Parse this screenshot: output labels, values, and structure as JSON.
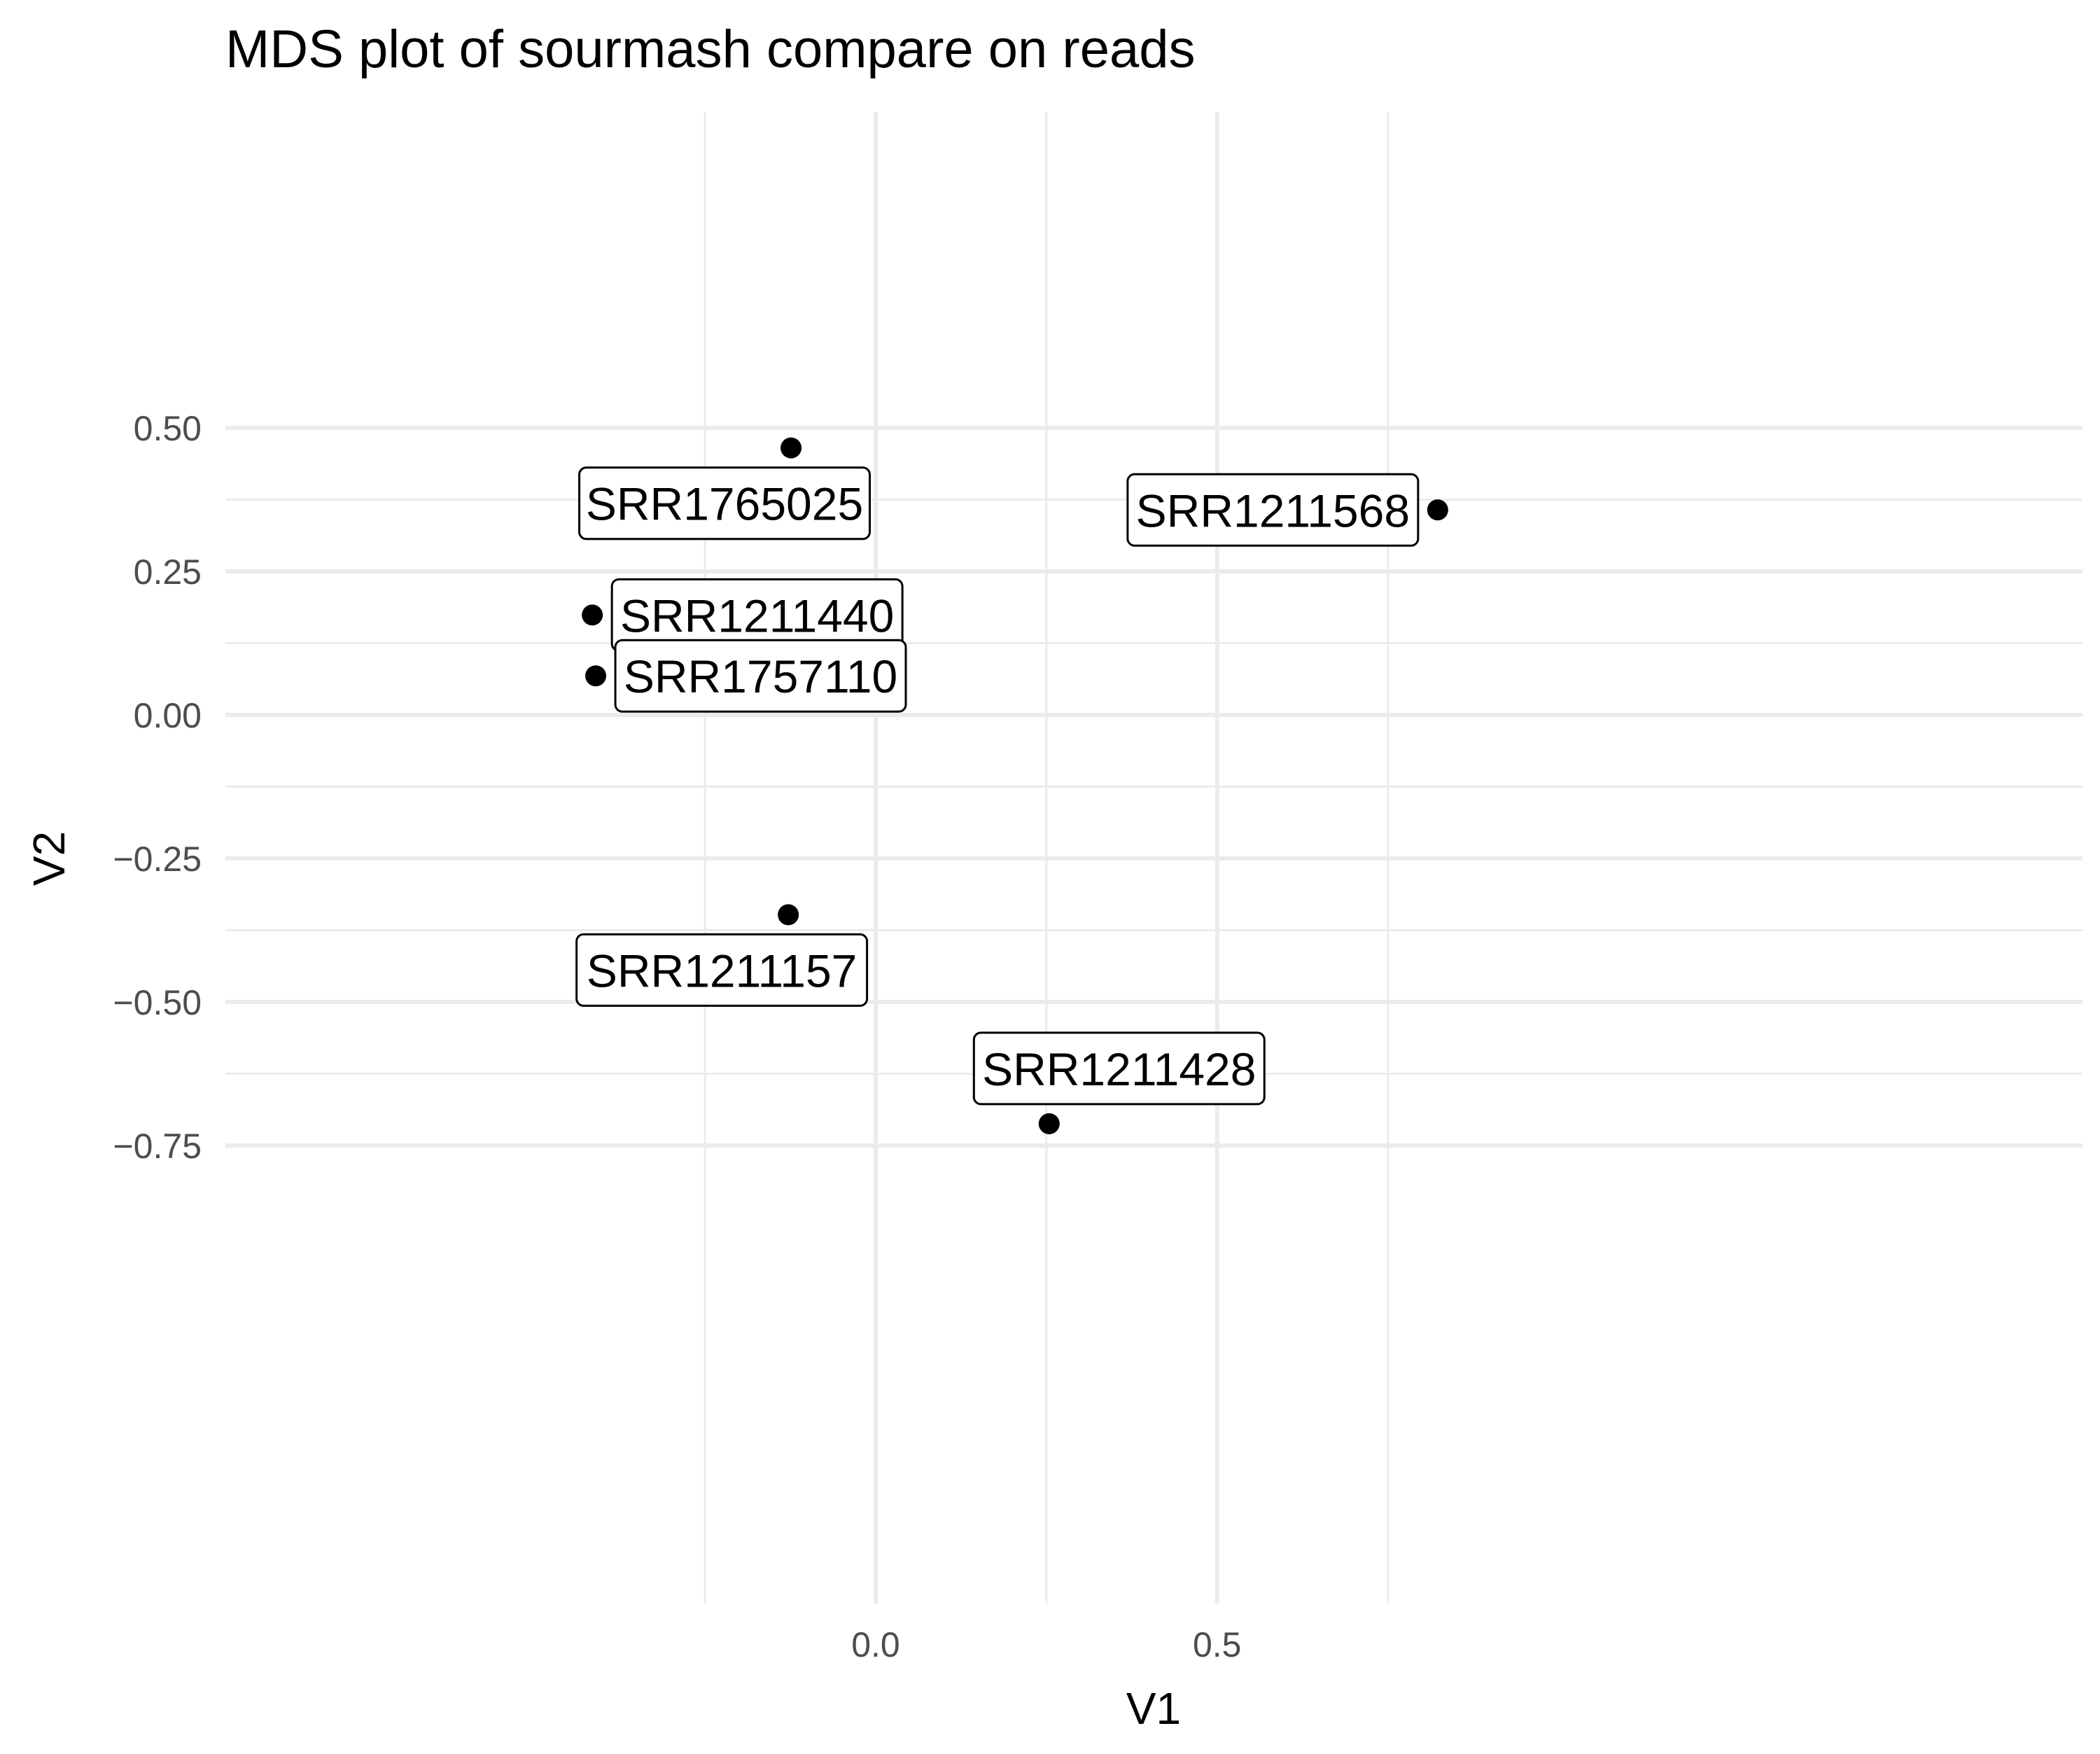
{
  "chart_data": {
    "type": "scatter",
    "title": "MDS plot of sourmash compare on reads",
    "xlabel": "V1",
    "ylabel": "V2",
    "xlim": [
      -0.485,
      0.875
    ],
    "ylim": [
      -0.77,
      0.515
    ],
    "x_ticks": [
      0.0,
      0.5
    ],
    "x_tick_labels": [
      "0.0",
      "0.5"
    ],
    "x_minor_ticks": [
      -0.25,
      0.25,
      0.75
    ],
    "y_ticks": [
      0.5,
      0.25,
      0.0,
      -0.25,
      -0.5,
      -0.75
    ],
    "y_tick_labels": [
      "0.50",
      "0.25",
      "0.00",
      "−0.25",
      "−0.50",
      "−0.75"
    ],
    "y_minor_ticks": [
      0.375,
      0.125,
      -0.125,
      -0.375,
      -0.625
    ],
    "grid": true,
    "legend": "none",
    "point_color": "#000000",
    "grid_color": "#ebebeb",
    "points": [
      {
        "label": "SRR1765025",
        "x": -0.124,
        "y": 0.465,
        "label_side": "below"
      },
      {
        "label": "SRR1211568",
        "x": 0.823,
        "y": 0.357,
        "label_side": "left"
      },
      {
        "label": "SRR1211440",
        "x": -0.415,
        "y": 0.174,
        "label_side": "right"
      },
      {
        "label": "SRR1757110",
        "x": -0.41,
        "y": 0.068,
        "label_side": "right"
      },
      {
        "label": "SRR1211157",
        "x": -0.128,
        "y": -0.348,
        "label_side": "below"
      },
      {
        "label": "SRR1211428",
        "x": 0.254,
        "y": -0.712,
        "label_side": "above"
      }
    ]
  }
}
